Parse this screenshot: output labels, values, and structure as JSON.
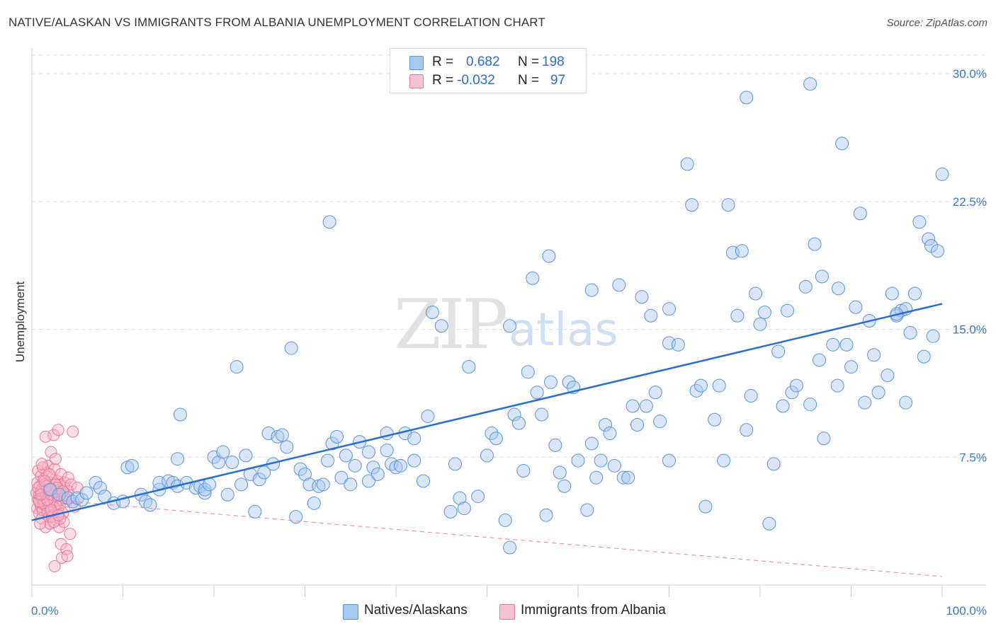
{
  "title": "NATIVE/ALASKAN VS IMMIGRANTS FROM ALBANIA UNEMPLOYMENT CORRELATION CHART",
  "source": "Source: ZipAtlas.com",
  "watermark": {
    "zip": "ZIP",
    "atlas": "atlas"
  },
  "colors": {
    "blue_fill": "#a9c8ef",
    "blue_stroke": "#5b93d6",
    "blue_line": "#2a6fcf",
    "pink_fill": "#f6b4c8",
    "pink_stroke": "#e7799b",
    "pink_line": "#e8839f",
    "tick_text": "#3a78c9",
    "grid": "#dddddd"
  },
  "legend": {
    "rows": [
      {
        "r_label": "R =",
        "r_value": "0.682",
        "n_label": "N =",
        "n_value": "198"
      },
      {
        "r_label": "R =",
        "r_value": "-0.032",
        "n_label": "N =",
        "n_value": "97"
      }
    ]
  },
  "bottom_legend": [
    "Natives/Alaskans",
    "Immigrants from Albania"
  ],
  "chart_data": {
    "type": "scatter",
    "xlabel": "",
    "ylabel": "Unemployment",
    "xlim": [
      0,
      100
    ],
    "ylim": [
      0,
      31.5
    ],
    "x_tick_labels": [
      "0.0%",
      "100.0%"
    ],
    "y_ticks": [
      7.5,
      15.0,
      22.5,
      30.0
    ],
    "y_tick_labels": [
      "7.5%",
      "15.0%",
      "22.5%",
      "30.0%"
    ],
    "grid": true,
    "series": [
      {
        "name": "Natives/Alaskans",
        "r": 0.682,
        "n": 198,
        "trend": {
          "x0": 0,
          "y0": 3.8,
          "x1": 100,
          "y1": 16.5
        },
        "points": [
          [
            2,
            5.6
          ],
          [
            3,
            5.3
          ],
          [
            4,
            5.1
          ],
          [
            4.5,
            4.9
          ],
          [
            5,
            5.1
          ],
          [
            5.5,
            5.0
          ],
          [
            6,
            5.4
          ],
          [
            7,
            6.0
          ],
          [
            7.5,
            5.7
          ],
          [
            8,
            5.2
          ],
          [
            9,
            4.8
          ],
          [
            10,
            4.9
          ],
          [
            10.5,
            6.9
          ],
          [
            11,
            7.0
          ],
          [
            12,
            5.3
          ],
          [
            12.5,
            4.9
          ],
          [
            13,
            4.7
          ],
          [
            14,
            5.6
          ],
          [
            14,
            6.0
          ],
          [
            15,
            6.1
          ],
          [
            15.5,
            6.0
          ],
          [
            16,
            5.8
          ],
          [
            16,
            7.4
          ],
          [
            16.3,
            10.0
          ],
          [
            17,
            6.0
          ],
          [
            18,
            5.7
          ],
          [
            18.5,
            5.8
          ],
          [
            19,
            5.4
          ],
          [
            19,
            5.6
          ],
          [
            19.5,
            5.9
          ],
          [
            20,
            7.5
          ],
          [
            20.5,
            7.2
          ],
          [
            21,
            7.8
          ],
          [
            21.5,
            5.3
          ],
          [
            22,
            7.2
          ],
          [
            22.5,
            12.8
          ],
          [
            23,
            5.9
          ],
          [
            23.5,
            7.6
          ],
          [
            24,
            6.5
          ],
          [
            24.5,
            4.3
          ],
          [
            25,
            6.2
          ],
          [
            25.5,
            6.6
          ],
          [
            26,
            8.9
          ],
          [
            26.5,
            7.1
          ],
          [
            27,
            8.7
          ],
          [
            27.5,
            8.8
          ],
          [
            28,
            8.1
          ],
          [
            28.5,
            13.9
          ],
          [
            29,
            4.0
          ],
          [
            29.5,
            6.8
          ],
          [
            30,
            6.5
          ],
          [
            30.5,
            5.9
          ],
          [
            31,
            4.8
          ],
          [
            31.5,
            5.8
          ],
          [
            32,
            5.9
          ],
          [
            32.5,
            7.3
          ],
          [
            32.7,
            21.3
          ],
          [
            33,
            8.3
          ],
          [
            33.5,
            8.7
          ],
          [
            34,
            6.3
          ],
          [
            34.5,
            7.6
          ],
          [
            35,
            5.9
          ],
          [
            35.5,
            7.0
          ],
          [
            36,
            8.4
          ],
          [
            37,
            6.1
          ],
          [
            37,
            7.8
          ],
          [
            37.5,
            6.9
          ],
          [
            38,
            6.5
          ],
          [
            39,
            7.9
          ],
          [
            39,
            8.9
          ],
          [
            39.5,
            7.1
          ],
          [
            40,
            6.9
          ],
          [
            40.5,
            7.0
          ],
          [
            41,
            8.9
          ],
          [
            42,
            7.3
          ],
          [
            42,
            8.6
          ],
          [
            43,
            6.1
          ],
          [
            43.5,
            9.9
          ],
          [
            44,
            16.0
          ],
          [
            45,
            15.2
          ],
          [
            46,
            4.3
          ],
          [
            46.5,
            7.1
          ],
          [
            47,
            5.1
          ],
          [
            47.5,
            4.5
          ],
          [
            48,
            12.8
          ],
          [
            49,
            5.2
          ],
          [
            50,
            7.6
          ],
          [
            50.5,
            8.9
          ],
          [
            51,
            8.6
          ],
          [
            52,
            3.8
          ],
          [
            52.5,
            2.2
          ],
          [
            52.5,
            15.2
          ],
          [
            53,
            10.0
          ],
          [
            53.5,
            9.5
          ],
          [
            54,
            6.7
          ],
          [
            54.5,
            12.5
          ],
          [
            55,
            18.0
          ],
          [
            55.5,
            11.3
          ],
          [
            56,
            10.0
          ],
          [
            56.5,
            4.1
          ],
          [
            56.8,
            19.3
          ],
          [
            57,
            11.9
          ],
          [
            57.5,
            8.2
          ],
          [
            58,
            6.6
          ],
          [
            58.5,
            5.8
          ],
          [
            59,
            11.9
          ],
          [
            59.5,
            11.6
          ],
          [
            60,
            7.3
          ],
          [
            61,
            4.4
          ],
          [
            61.5,
            8.3
          ],
          [
            62,
            6.3
          ],
          [
            62.5,
            7.3
          ],
          [
            63,
            9.4
          ],
          [
            63.5,
            8.9
          ],
          [
            64,
            7.0
          ],
          [
            64.5,
            17.6
          ],
          [
            65,
            6.3
          ],
          [
            65.5,
            6.3
          ],
          [
            66,
            10.5
          ],
          [
            66.5,
            9.4
          ],
          [
            67,
            16.9
          ],
          [
            67.5,
            10.5
          ],
          [
            68,
            15.8
          ],
          [
            68.5,
            11.3
          ],
          [
            69,
            9.6
          ],
          [
            70,
            14.2
          ],
          [
            70,
            7.3
          ],
          [
            71,
            14.1
          ],
          [
            72,
            24.7
          ],
          [
            72.5,
            22.3
          ],
          [
            73,
            11.4
          ],
          [
            73.5,
            11.7
          ],
          [
            74,
            4.6
          ],
          [
            75,
            9.7
          ],
          [
            75.5,
            11.7
          ],
          [
            76,
            7.3
          ],
          [
            76.5,
            22.3
          ],
          [
            77,
            19.5
          ],
          [
            77.5,
            15.8
          ],
          [
            78,
            19.6
          ],
          [
            78.5,
            9.1
          ],
          [
            79,
            11.1
          ],
          [
            79.5,
            17.1
          ],
          [
            80,
            15.3
          ],
          [
            80.5,
            16.0
          ],
          [
            81,
            3.6
          ],
          [
            81.5,
            7.1
          ],
          [
            82,
            13.7
          ],
          [
            82.5,
            10.5
          ],
          [
            83,
            16.1
          ],
          [
            83.5,
            11.3
          ],
          [
            84,
            11.7
          ],
          [
            85,
            17.5
          ],
          [
            85.5,
            10.6
          ],
          [
            86,
            20.0
          ],
          [
            86.5,
            13.2
          ],
          [
            86.8,
            18.1
          ],
          [
            87,
            8.6
          ],
          [
            88,
            14.1
          ],
          [
            88.5,
            11.7
          ],
          [
            88.6,
            17.4
          ],
          [
            89,
            25.9
          ],
          [
            89.5,
            14.1
          ],
          [
            90,
            12.8
          ],
          [
            90.5,
            16.3
          ],
          [
            91,
            21.8
          ],
          [
            91.5,
            10.7
          ],
          [
            92,
            15.5
          ],
          [
            92.5,
            13.5
          ],
          [
            93,
            11.3
          ],
          [
            94,
            12.3
          ],
          [
            94.5,
            17.1
          ],
          [
            95,
            15.8
          ],
          [
            95.5,
            16.1
          ],
          [
            96,
            10.7
          ],
          [
            96.5,
            14.8
          ],
          [
            97,
            17.1
          ],
          [
            97.5,
            21.3
          ],
          [
            98,
            13.4
          ],
          [
            98.5,
            20.3
          ],
          [
            98.8,
            19.9
          ],
          [
            99,
            14.6
          ],
          [
            99.5,
            19.6
          ],
          [
            100,
            24.1
          ],
          [
            96,
            16.2
          ],
          [
            95,
            15.9
          ],
          [
            61.5,
            17.3
          ],
          [
            78.5,
            28.6
          ],
          [
            85.5,
            29.4
          ],
          [
            70,
            16.2
          ]
        ]
      },
      {
        "name": "Immigrants from Albania",
        "r": -0.032,
        "n": 97,
        "trend": {
          "x0": 0,
          "y0": 5.1,
          "x1": 100,
          "y1": 0.5
        },
        "points": [
          [
            0.5,
            5.4
          ],
          [
            0.6,
            6.0
          ],
          [
            0.6,
            4.5
          ],
          [
            0.7,
            5.0
          ],
          [
            0.7,
            6.7
          ],
          [
            0.8,
            5.3
          ],
          [
            0.8,
            4.2
          ],
          [
            0.9,
            5.8
          ],
          [
            0.9,
            4.8
          ],
          [
            1.0,
            5.5
          ],
          [
            1.0,
            6.4
          ],
          [
            1.0,
            4.6
          ],
          [
            1.1,
            5.1
          ],
          [
            1.1,
            3.9
          ],
          [
            1.2,
            5.7
          ],
          [
            1.2,
            4.4
          ],
          [
            1.3,
            6.2
          ],
          [
            1.3,
            5.0
          ],
          [
            1.4,
            4.7
          ],
          [
            1.4,
            5.9
          ],
          [
            1.5,
            5.2
          ],
          [
            1.5,
            3.4
          ],
          [
            1.5,
            8.7
          ],
          [
            1.6,
            4.9
          ],
          [
            1.6,
            6.6
          ],
          [
            1.7,
            5.6
          ],
          [
            1.7,
            4.3
          ],
          [
            1.8,
            5.1
          ],
          [
            1.8,
            7.0
          ],
          [
            1.9,
            4.0
          ],
          [
            1.9,
            5.4
          ],
          [
            2.0,
            6.0
          ],
          [
            2.0,
            4.6
          ],
          [
            2.0,
            3.6
          ],
          [
            2.1,
            5.3
          ],
          [
            2.1,
            7.8
          ],
          [
            2.2,
            4.9
          ],
          [
            2.2,
            6.3
          ],
          [
            2.3,
            5.7
          ],
          [
            2.3,
            4.1
          ],
          [
            2.4,
            8.8
          ],
          [
            2.4,
            5.0
          ],
          [
            2.5,
            6.8
          ],
          [
            2.5,
            4.5
          ],
          [
            2.6,
            5.5
          ],
          [
            2.6,
            7.4
          ],
          [
            2.7,
            4.8
          ],
          [
            2.7,
            3.8
          ],
          [
            2.8,
            6.1
          ],
          [
            2.8,
            5.2
          ],
          [
            2.9,
            4.3
          ],
          [
            2.9,
            9.1
          ],
          [
            3.0,
            5.9
          ],
          [
            3.0,
            3.4
          ],
          [
            3.1,
            5.6
          ],
          [
            3.1,
            4.7
          ],
          [
            3.2,
            6.5
          ],
          [
            3.2,
            2.4
          ],
          [
            3.3,
            5.0
          ],
          [
            3.3,
            1.6
          ],
          [
            3.4,
            4.2
          ],
          [
            3.5,
            5.8
          ],
          [
            3.5,
            3.7
          ],
          [
            3.6,
            6.0
          ],
          [
            3.7,
            5.3
          ],
          [
            3.8,
            2.1
          ],
          [
            3.8,
            4.9
          ],
          [
            3.9,
            1.7
          ],
          [
            4.0,
            6.3
          ],
          [
            4.0,
            5.5
          ],
          [
            4.2,
            3.0
          ],
          [
            4.3,
            5.9
          ],
          [
            4.5,
            9.0
          ],
          [
            4.7,
            4.6
          ],
          [
            1.2,
            6.9
          ],
          [
            0.9,
            3.6
          ],
          [
            2.2,
            4.0
          ],
          [
            1.6,
            5.8
          ],
          [
            0.7,
            5.7
          ],
          [
            1.9,
            6.5
          ],
          [
            2.6,
            5.9
          ],
          [
            3.1,
            3.9
          ],
          [
            1.3,
            4.8
          ],
          [
            2.4,
            3.7
          ],
          [
            0.8,
            4.9
          ],
          [
            1.7,
            5.0
          ],
          [
            2.1,
            4.4
          ],
          [
            1.4,
            6.1
          ],
          [
            2.8,
            5.7
          ],
          [
            3.6,
            5.1
          ],
          [
            1.1,
            7.1
          ],
          [
            2.0,
            5.6
          ],
          [
            2.9,
            4.1
          ],
          [
            3.4,
            5.5
          ],
          [
            5.0,
            5.7
          ],
          [
            2.5,
            1.1
          ],
          [
            1.0,
            5.3
          ]
        ]
      }
    ]
  }
}
